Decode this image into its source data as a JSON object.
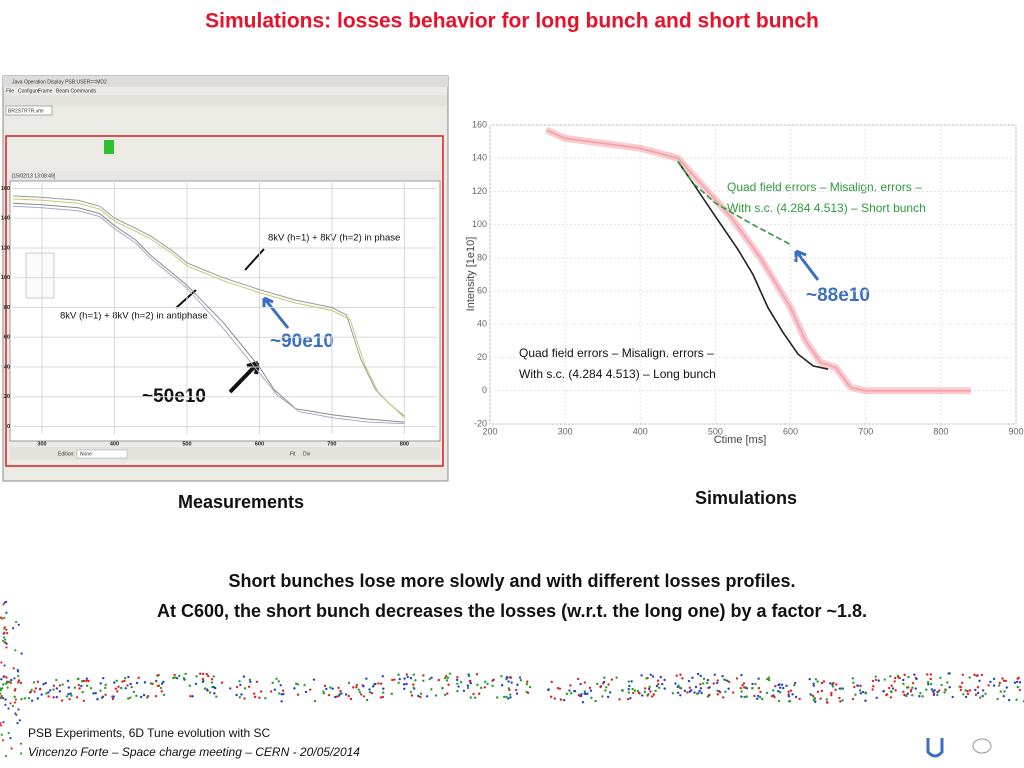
{
  "title": "Simulations: losses behavior for long bunch and short bunch",
  "chart_data": [
    {
      "type": "line",
      "window_title": "Java Operation Display PSB:USER==MD2",
      "menu": [
        "File",
        "Configure",
        "Frame",
        "Beam Commands"
      ],
      "tab": "BR2STRTR.xml",
      "timestamp": "[15/02/13 13:08:49]",
      "toolbar": [
        "Edition:",
        "None",
        "Fit",
        "Div"
      ],
      "annotations": [
        "8kV (h=1) + 8kV (h=2) in phase",
        "8kV (h=1) + 8kV (h=2) in antiphase",
        "~90e10",
        "~50e10"
      ],
      "xlim": [
        260,
        845
      ],
      "xticks": [
        300,
        400,
        500,
        600,
        700,
        800
      ],
      "ylim": [
        -5,
        165
      ],
      "yticks": [
        0,
        20,
        40,
        60,
        80,
        100,
        120,
        140,
        160
      ],
      "series": [
        {
          "color": "#9a9a9a",
          "x": [
            260,
            300,
            350,
            380,
            400,
            430,
            450,
            480,
            500,
            550,
            600,
            650,
            700,
            720,
            740,
            760,
            780,
            800
          ],
          "values": [
            155,
            154,
            152,
            148,
            140,
            133,
            128,
            118,
            110,
            100,
            92,
            85,
            80,
            75,
            45,
            25,
            15,
            7
          ]
        },
        {
          "color": "#c8c870",
          "x": [
            260,
            300,
            350,
            380,
            400,
            430,
            450,
            480,
            500,
            550,
            600,
            650,
            700,
            725,
            745,
            765,
            785,
            800
          ],
          "values": [
            153,
            152,
            150,
            146,
            138,
            131,
            126,
            116,
            108,
            98,
            90,
            83,
            78,
            72,
            42,
            22,
            13,
            6
          ]
        },
        {
          "color": "#888888",
          "x": [
            260,
            300,
            350,
            380,
            400,
            430,
            450,
            480,
            500,
            550,
            600,
            620,
            650,
            700,
            750,
            800
          ],
          "values": [
            150,
            149,
            147,
            143,
            135,
            125,
            115,
            103,
            95,
            70,
            40,
            25,
            12,
            8,
            5,
            3
          ]
        },
        {
          "color": "#a8a8c8",
          "x": [
            260,
            300,
            350,
            380,
            400,
            430,
            450,
            480,
            500,
            550,
            600,
            625,
            655,
            700,
            750,
            800
          ],
          "values": [
            148,
            147,
            145,
            141,
            133,
            123,
            113,
            101,
            93,
            66,
            36,
            21,
            10,
            6,
            3,
            2
          ]
        }
      ]
    },
    {
      "type": "line",
      "xlabel": "Ctime [ms]",
      "ylabel": "Intensity [1e10]",
      "annotations": [
        [
          "Quad field errors – Misalign. errors –",
          "With s.c. (4.284 4.513) – Short bunch"
        ],
        [
          "Quad field errors – Misalign. errors –",
          "With s.c. (4.284 4.513) – Long bunch"
        ],
        "~88e10"
      ],
      "xlim": [
        200,
        900
      ],
      "xticks": [
        200,
        300,
        400,
        500,
        600,
        700,
        800,
        900
      ],
      "ylim": [
        -20,
        160
      ],
      "yticks": [
        -20,
        0,
        20,
        40,
        60,
        80,
        100,
        120,
        140,
        160
      ],
      "grid": true,
      "series": [
        {
          "color": "#f4a0a8",
          "band": true,
          "x": [
            275,
            300,
            400,
            450,
            480,
            520,
            560,
            600,
            620,
            640,
            660,
            670,
            680,
            700,
            840
          ],
          "values": [
            157,
            152,
            146,
            140,
            125,
            105,
            80,
            50,
            30,
            17,
            14,
            8,
            2,
            0,
            0
          ]
        },
        {
          "color": "#222222",
          "x": [
            450,
            470,
            500,
            530,
            550,
            570,
            590,
            610,
            630,
            650
          ],
          "values": [
            138,
            125,
            105,
            85,
            70,
            50,
            35,
            22,
            15,
            13
          ]
        },
        {
          "color": "#2e9a3e",
          "dash": true,
          "x": [
            450,
            470,
            500,
            550,
            600
          ],
          "values": [
            138,
            125,
            113,
            100,
            88
          ]
        }
      ]
    }
  ],
  "captions": [
    "Measurements",
    "Simulations"
  ],
  "conclusion": [
    "Short bunches lose more slowly and with different losses profiles.",
    "At C600, the short bunch decreases the losses  (w.r.t. the long one) by a factor ~1.8."
  ],
  "footer": [
    "PSB Experiments, 6D Tune evolution with SC",
    "Vincenzo Forte – Space charge meeting – CERN - 20/05/2014"
  ]
}
